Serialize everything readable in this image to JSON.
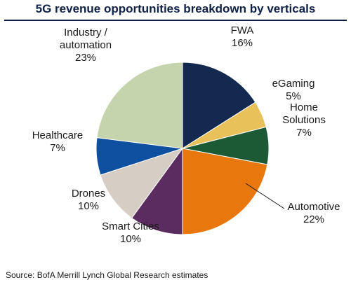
{
  "chart_data": {
    "type": "pie",
    "title": "5G revenue opportunities breakdown by verticals",
    "slices": [
      {
        "name": "FWA",
        "value": 16,
        "label": "16%",
        "color": "#13294f"
      },
      {
        "name": "eGaming",
        "value": 5,
        "label": "5%",
        "color": "#e8c15a"
      },
      {
        "name": "Home Solutions",
        "value": 7,
        "label": "7%",
        "color": "#1b5a34"
      },
      {
        "name": "Automotive",
        "value": 22,
        "label": "22%",
        "color": "#e8770e"
      },
      {
        "name": "Smart Cities",
        "value": 10,
        "label": "10%",
        "color": "#5b2c5f"
      },
      {
        "name": "Drones",
        "value": 10,
        "label": "10%",
        "color": "#d6cdc5"
      },
      {
        "name": "Healthcare",
        "value": 7,
        "label": "7%",
        "color": "#0f4f9f"
      },
      {
        "name": "Industry / automation",
        "value": 23,
        "label": "23%",
        "color": "#c5d4ad"
      }
    ]
  },
  "source": "Source:  BofA Merrill Lynch Global Research estimates"
}
